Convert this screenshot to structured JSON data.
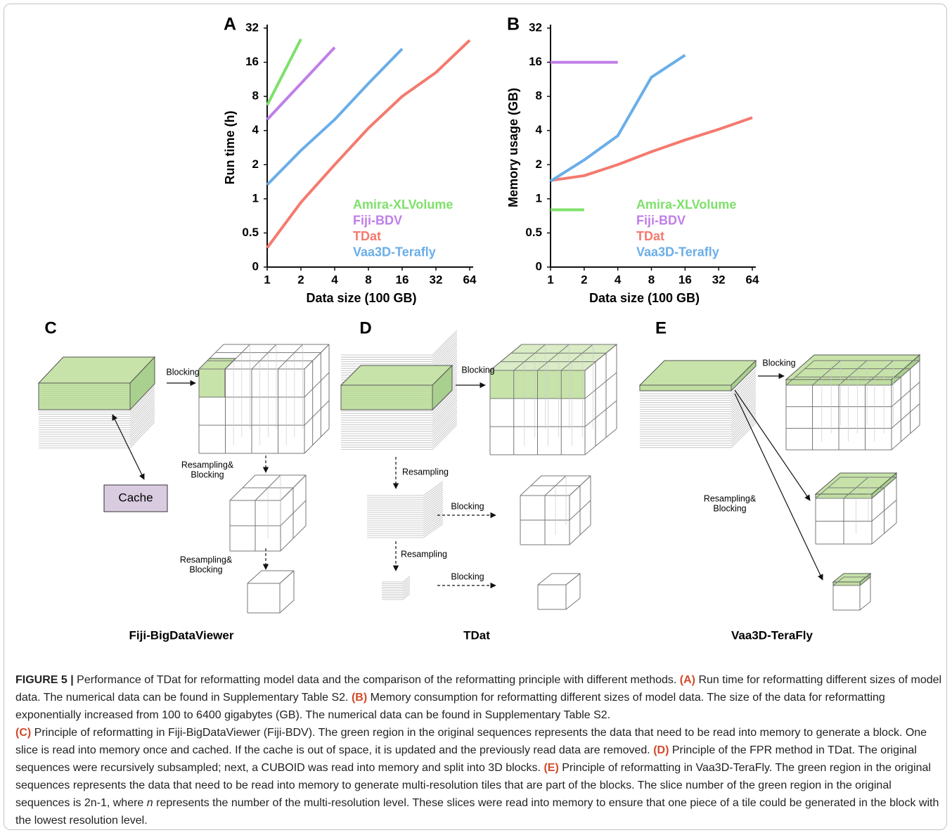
{
  "chart_data": [
    {
      "type": "line",
      "panel_label": "A",
      "xlabel": "Data size (100 GB)",
      "ylabel": "Run time (h)",
      "xlim": [
        1,
        64
      ],
      "xticks": [
        1,
        2,
        4,
        8,
        16,
        32,
        64
      ],
      "xlog": true,
      "ylim": [
        0.25,
        32
      ],
      "yticks": [
        {
          "value": 0.25,
          "label": "0"
        },
        0.5,
        1,
        2,
        4,
        8,
        16,
        32
      ],
      "ylog": true,
      "legend": "lower right",
      "series": [
        {
          "name": "Amira-XLVolume",
          "color": "#7ee06a",
          "x": [
            1,
            2
          ],
          "values": [
            6.7,
            25.6
          ]
        },
        {
          "name": "Fiji-BDV",
          "color": "#c07ee8",
          "x": [
            1,
            4
          ],
          "values": [
            5.0,
            21.6
          ]
        },
        {
          "name": "TDat",
          "color": "#f47a6e",
          "x": [
            1,
            2,
            4,
            8,
            16,
            32,
            64
          ],
          "values": [
            0.37,
            0.93,
            2.0,
            4.2,
            8.0,
            13.0,
            25.0
          ]
        },
        {
          "name": "Vaa3D-Terafly",
          "color": "#6aaee8",
          "x": [
            1,
            2,
            4,
            8,
            16
          ],
          "values": [
            1.33,
            2.67,
            5.0,
            10.4,
            21.0
          ]
        }
      ]
    },
    {
      "type": "line",
      "panel_label": "B",
      "xlabel": "Data size (100 GB)",
      "ylabel": "Memory usage (GB)",
      "xlim": [
        1,
        64
      ],
      "xticks": [
        1,
        2,
        4,
        8,
        16,
        32,
        64
      ],
      "xlog": true,
      "ylim": [
        0.25,
        32
      ],
      "yticks": [
        {
          "value": 0.25,
          "label": "0"
        },
        0.5,
        1,
        2,
        4,
        8,
        16,
        32
      ],
      "ylog": true,
      "legend": "lower right",
      "series": [
        {
          "name": "Amira-XLVolume",
          "color": "#7ee06a",
          "x": [
            1,
            2
          ],
          "values": [
            0.8,
            0.8
          ]
        },
        {
          "name": "Fiji-BDV",
          "color": "#c07ee8",
          "x": [
            1,
            4
          ],
          "values": [
            16,
            16
          ]
        },
        {
          "name": "TDat",
          "color": "#f47a6e",
          "x": [
            1,
            2,
            4,
            8,
            16,
            32,
            64
          ],
          "values": [
            1.45,
            1.6,
            2.0,
            2.6,
            3.3,
            4.1,
            5.2
          ]
        },
        {
          "name": "Vaa3D-Terafly",
          "color": "#6aaee8",
          "x": [
            1,
            2,
            4,
            8,
            16
          ],
          "values": [
            1.43,
            2.2,
            3.6,
            11.8,
            18.5
          ]
        }
      ]
    }
  ],
  "panels": [
    {
      "letter": "C",
      "title": "Fiji-BigDataViewer",
      "labels": [
        [
          "Blocking"
        ],
        [
          "Resampling&",
          "Blocking"
        ],
        [
          "Resampling&",
          "Blocking"
        ],
        [
          "Cache"
        ]
      ]
    },
    {
      "letter": "D",
      "title": "TDat",
      "labels": [
        [
          "Blocking"
        ],
        [
          "Resampling"
        ],
        [
          "Blocking"
        ],
        [
          "Resampling"
        ],
        [
          "Blocking"
        ]
      ]
    },
    {
      "letter": "E",
      "title": "Vaa3D-TeraFly",
      "labels": [
        [
          "Blocking"
        ],
        [
          "Resampling&",
          "Blocking"
        ]
      ]
    }
  ],
  "caption": [
    "FIGURE 5 |",
    " Performance of TDat for reformatting model data and the comparison of the reformatting principle with different methods. ",
    "(A)",
    " Run time for reformatting different sizes of model data. The numerical data can be found in Supplementary Table S2. ",
    "(B)",
    " Memory consumption for reformatting different sizes of model data. The size of the data for reformatting exponentially increased from 100 to 6400 gigabytes (GB). The numerical data can be found in Supplementary Table S2.",
    "(C)",
    " Principle of reformatting in Fiji-BigDataViewer (Fiji-BDV). The green region in the original sequences represents the data that need to be read into memory to generate a block. One slice is read into memory once and cached. If the cache is out of space, it is updated and the previously read data are removed. ",
    "(D)",
    " Principle of the FPR method in TDat. The original sequences were recursively subsampled; next, a CUBOID was read into memory and split into 3D blocks. ",
    "(E)",
    " Principle of reformatting in Vaa3D-TeraFly. The green region in the original sequences represents the data that need to be read into memory to generate multi-resolution tiles that are part of the blocks. The slice number of the green region in the original sequences is 2n-1, where ",
    "n",
    " represents the number of the multi-resolution level. These slices were read into memory to ensure that one piece of a tile could be generated in the block with the lowest resolution level."
  ]
}
